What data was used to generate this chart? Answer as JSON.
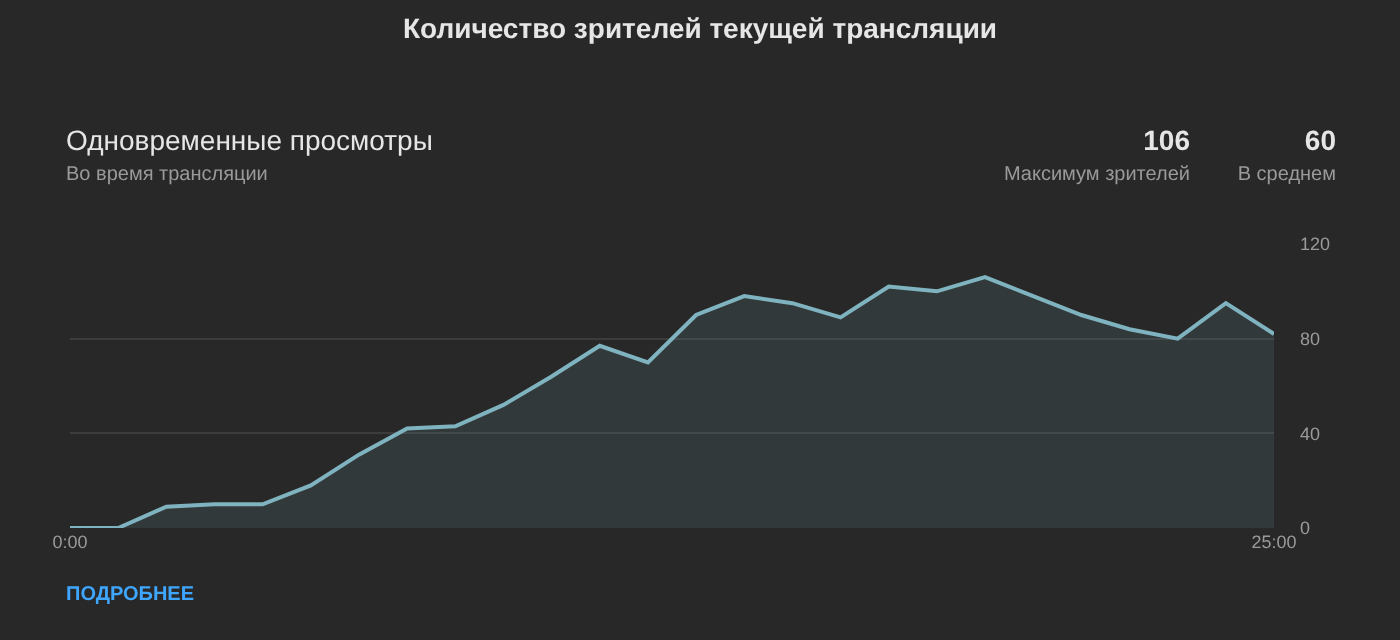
{
  "chart_data": {
    "type": "area",
    "title": "Количество зрителей текущей трансляции",
    "subtitle": "Одновременные просмотры",
    "annotations": [
      "Во время трансляции",
      "106",
      "Максимум зрителей",
      "60",
      "В среднем",
      "ПОДРОБНЕЕ"
    ],
    "x": [
      0,
      1,
      2,
      3,
      4,
      5,
      6,
      7,
      8,
      9,
      10,
      11,
      12,
      13,
      14,
      15,
      16,
      17,
      18,
      19,
      20,
      21,
      22,
      23,
      24,
      25
    ],
    "series": [
      {
        "color": "#7fb3bf",
        "values": [
          0,
          0,
          9,
          10,
          10,
          18,
          31,
          42,
          43,
          52,
          64,
          77,
          70,
          90,
          98,
          95,
          89,
          102,
          100,
          106,
          98,
          90,
          84,
          80,
          95,
          82
        ]
      }
    ],
    "xlim": [
      0,
      25
    ],
    "xticks": [
      {
        "value": 0,
        "label": "0:00"
      },
      {
        "value": 25,
        "label": "25:00"
      }
    ],
    "ylim": [
      0,
      120
    ],
    "yticks": [
      0,
      40,
      80,
      120
    ],
    "grid": "y",
    "legend": false,
    "marker": "none",
    "line_style": "solid"
  }
}
